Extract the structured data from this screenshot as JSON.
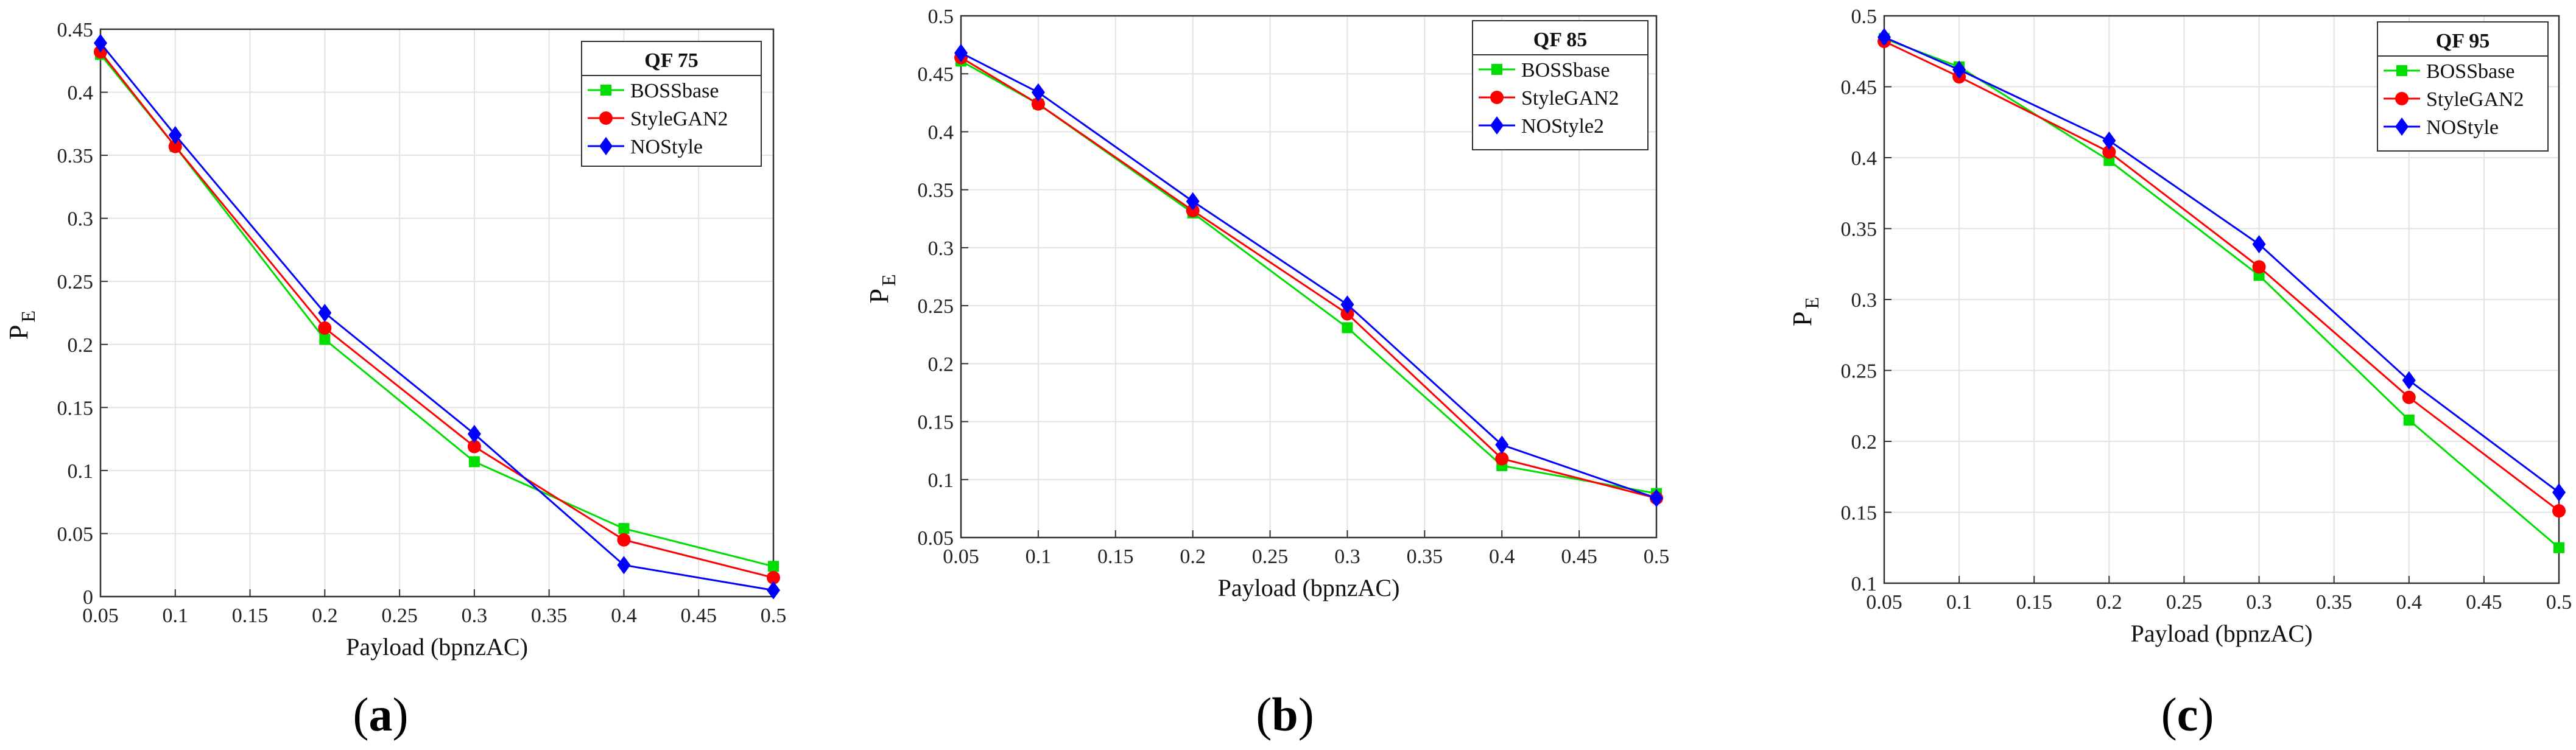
{
  "chart_data": [
    {
      "type": "line",
      "title": "QF 75",
      "panel_label": "a",
      "xlabel": "Payload (bpnzAC)",
      "ylabel": "P",
      "ylabel_sub": "E",
      "xlim": [
        0.05,
        0.5
      ],
      "ylim": [
        0,
        0.45
      ],
      "xticks": [
        "0.05",
        "0.1",
        "0.15",
        "0.2",
        "0.25",
        "0.3",
        "0.35",
        "0.4",
        "0.45",
        "0.5"
      ],
      "yticks": [
        "0",
        "0.05",
        "0.1",
        "0.15",
        "0.2",
        "0.25",
        "0.3",
        "0.35",
        "0.4",
        "0.45"
      ],
      "grid": true,
      "legend_position": "top-right",
      "x": [
        0.05,
        0.1,
        0.2,
        0.3,
        0.4,
        0.5
      ],
      "series": [
        {
          "name": "BOSSbase",
          "color": "#00dd00",
          "marker": "square",
          "values": [
            0.43,
            0.357,
            0.204,
            0.107,
            0.054,
            0.024
          ]
        },
        {
          "name": "StyleGAN2",
          "color": "#ff0000",
          "marker": "circle",
          "values": [
            0.432,
            0.357,
            0.213,
            0.119,
            0.045,
            0.015
          ]
        },
        {
          "name": "NOStyle",
          "color": "#0000ff",
          "marker": "diamond",
          "values": [
            0.439,
            0.366,
            0.225,
            0.129,
            0.025,
            0.005
          ]
        }
      ]
    },
    {
      "type": "line",
      "title": "QF 85",
      "panel_label": "b",
      "xlabel": "Payload (bpnzAC)",
      "ylabel": "P",
      "ylabel_sub": "E",
      "xlim": [
        0.05,
        0.5
      ],
      "ylim": [
        0.05,
        0.5
      ],
      "xticks": [
        "0.05",
        "0.1",
        "0.15",
        "0.2",
        "0.25",
        "0.3",
        "0.35",
        "0.4",
        "0.45",
        "0.5"
      ],
      "yticks": [
        "0.05",
        "0.1",
        "0.15",
        "0.2",
        "0.25",
        "0.3",
        "0.35",
        "0.4",
        "0.45",
        "0.5"
      ],
      "grid": true,
      "legend_position": "top-right",
      "x": [
        0.05,
        0.1,
        0.2,
        0.3,
        0.4,
        0.5
      ],
      "series": [
        {
          "name": "BOSSbase",
          "color": "#00dd00",
          "marker": "square",
          "values": [
            0.461,
            0.424,
            0.33,
            0.231,
            0.112,
            0.088
          ]
        },
        {
          "name": "StyleGAN2",
          "color": "#ff0000",
          "marker": "circle",
          "values": [
            0.464,
            0.424,
            0.332,
            0.243,
            0.118,
            0.084
          ]
        },
        {
          "name": "NOStyle2",
          "color": "#0000ff",
          "marker": "diamond",
          "values": [
            0.468,
            0.434,
            0.34,
            0.251,
            0.13,
            0.084
          ]
        }
      ]
    },
    {
      "type": "line",
      "title": "QF 95",
      "panel_label": "c",
      "xlabel": "Payload (bpnzAC)",
      "ylabel": "P",
      "ylabel_sub": "E",
      "xlim": [
        0.05,
        0.5
      ],
      "ylim": [
        0.1,
        0.5
      ],
      "xticks": [
        "0.05",
        "0.1",
        "0.15",
        "0.2",
        "0.25",
        "0.3",
        "0.35",
        "0.4",
        "0.45",
        "0.5"
      ],
      "yticks": [
        "0.1",
        "0.15",
        "0.2",
        "0.25",
        "0.3",
        "0.35",
        "0.4",
        "0.45",
        "0.5"
      ],
      "grid": true,
      "legend_position": "top-right",
      "x": [
        0.05,
        0.1,
        0.2,
        0.3,
        0.4,
        0.5
      ],
      "series": [
        {
          "name": "BOSSbase",
          "color": "#00dd00",
          "marker": "square",
          "values": [
            0.484,
            0.464,
            0.398,
            0.317,
            0.215,
            0.125
          ]
        },
        {
          "name": "StyleGAN2",
          "color": "#ff0000",
          "marker": "circle",
          "values": [
            0.482,
            0.457,
            0.404,
            0.323,
            0.231,
            0.151
          ]
        },
        {
          "name": "NOStyle",
          "color": "#0000ff",
          "marker": "diamond",
          "values": [
            0.485,
            0.462,
            0.412,
            0.339,
            0.243,
            0.164
          ]
        }
      ]
    }
  ]
}
